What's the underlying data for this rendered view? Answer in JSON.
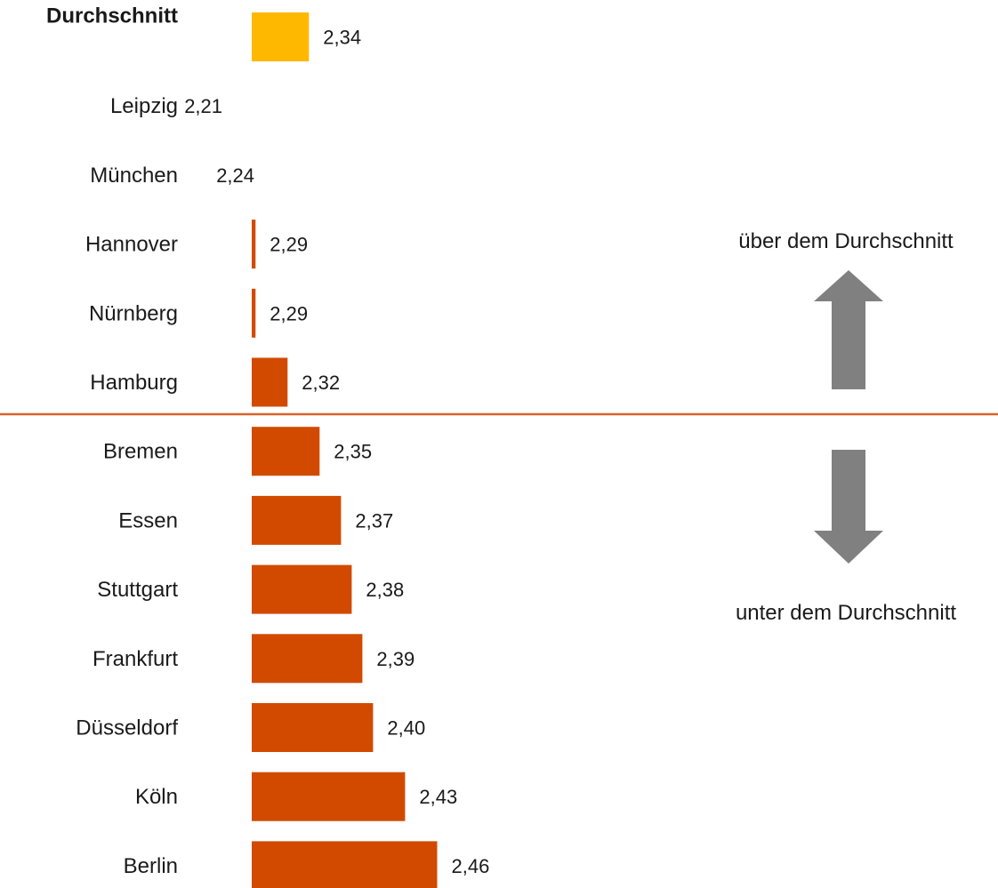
{
  "chart_data": {
    "type": "bar",
    "orientation": "horizontal",
    "categories": [
      "Durchschnitt",
      "Leipzig",
      "München",
      "Hannover",
      "Nürnberg",
      "Hamburg",
      "Bremen",
      "Essen",
      "Stuttgart",
      "Frankfurt",
      "Düsseldorf",
      "Köln",
      "Berlin"
    ],
    "values": [
      2.34,
      2.21,
      2.24,
      2.29,
      2.29,
      2.32,
      2.35,
      2.37,
      2.38,
      2.39,
      2.4,
      2.43,
      2.46
    ],
    "value_labels": [
      "2,34",
      "2,21",
      "2,24",
      "2,29",
      "2,29",
      "2,32",
      "2,35",
      "2,37",
      "2,38",
      "2,39",
      "2,40",
      "2,43",
      "2,46"
    ],
    "highlight_category": "Durchschnitt",
    "colors": {
      "highlight": "#FFB800",
      "bar": "#D14A00",
      "divider": "#D9632A",
      "arrow": "#808080"
    },
    "divider_between": [
      "Hamburg",
      "Bremen"
    ],
    "annotations": {
      "above": "über dem Durchschnitt",
      "below": "unter dem Durchschnitt"
    },
    "title": "",
    "xlabel": "",
    "ylabel": "",
    "grid": false,
    "legend": false
  }
}
